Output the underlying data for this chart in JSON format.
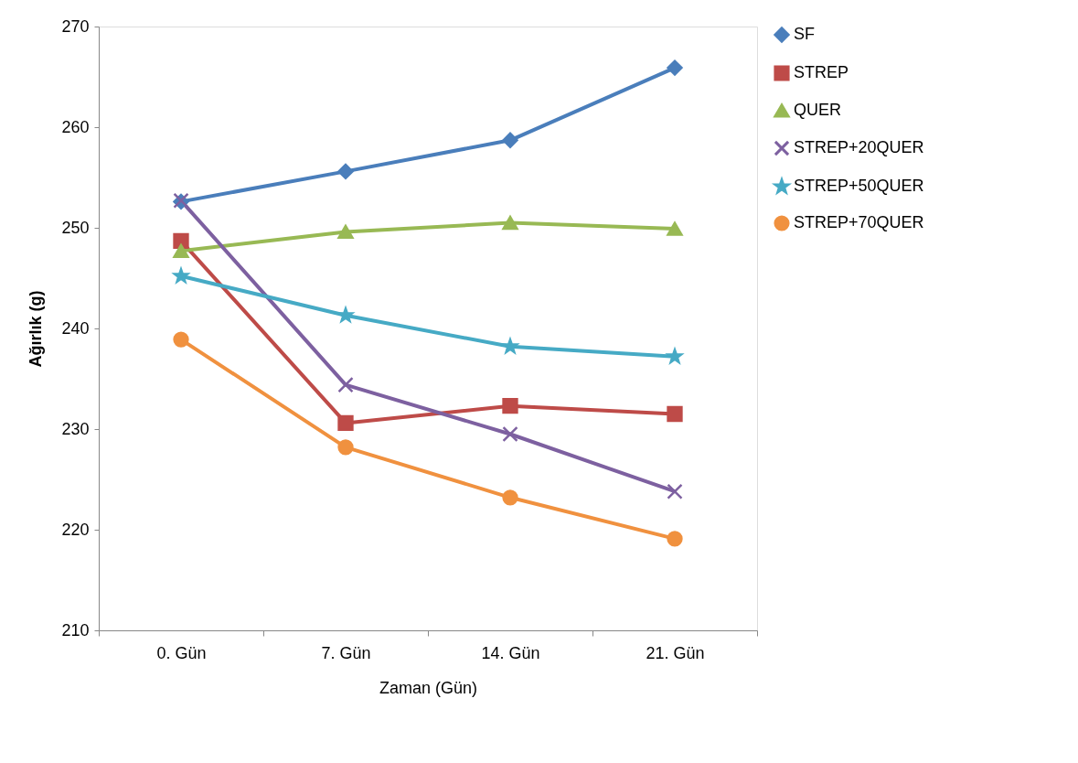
{
  "chart_data": {
    "type": "line",
    "xlabel": "Zaman (Gün)",
    "ylabel": "Ağırlık (g)",
    "categories": [
      "0. Gün",
      "7. Gün",
      "14. Gün",
      "21. Gün"
    ],
    "series": [
      {
        "name": "SF",
        "color": "#4a7ebb",
        "marker": "diamond",
        "values": [
          252.6,
          255.6,
          258.7,
          265.9
        ]
      },
      {
        "name": "STREP",
        "color": "#be4b48",
        "marker": "square",
        "values": [
          248.7,
          230.6,
          232.3,
          231.5
        ]
      },
      {
        "name": "QUER",
        "color": "#98b954",
        "marker": "triangle",
        "values": [
          247.7,
          249.6,
          250.5,
          249.9
        ]
      },
      {
        "name": "STREP+20QUER",
        "color": "#7d60a0",
        "marker": "cross",
        "values": [
          252.7,
          234.4,
          229.5,
          223.8
        ]
      },
      {
        "name": "STREP+50QUER",
        "color": "#46aac5",
        "marker": "star",
        "values": [
          245.2,
          241.3,
          238.2,
          237.2
        ]
      },
      {
        "name": "STREP+70QUER",
        "color": "#f0913f",
        "marker": "circle",
        "values": [
          238.9,
          228.2,
          223.2,
          219.1
        ]
      }
    ],
    "ylim": [
      210,
      270
    ],
    "yticks": [
      210,
      220,
      230,
      240,
      250,
      260,
      270
    ],
    "grid": false,
    "legend": "right",
    "line_style": "solid"
  }
}
